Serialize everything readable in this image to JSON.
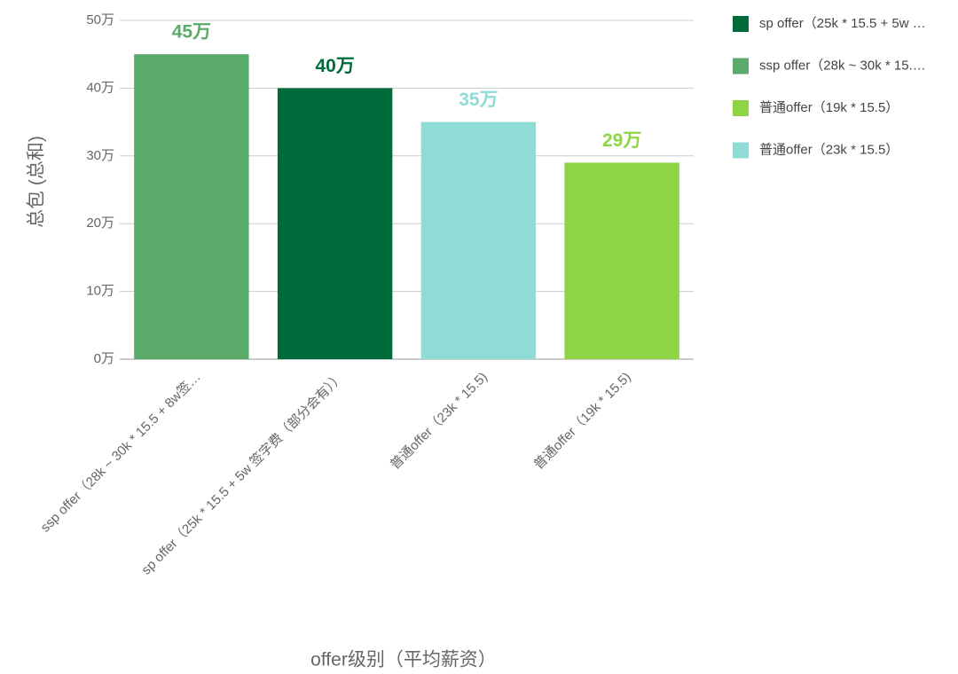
{
  "chart_data": {
    "type": "bar",
    "categories": [
      "ssp offer（28k ~ 30k * 15.5 + 8w签…",
      "sp offer（25k * 15.5 + 5w 签字费（部分会有））",
      "普通offer（23k * 15.5)",
      "普通offer（19k * 15.5)"
    ],
    "series": [
      {
        "name": "sp offer（25k * 15.5 + 5w …",
        "color": "#006b3a",
        "values": [
          null,
          40,
          null,
          null
        ],
        "value_labels": [
          null,
          "40万",
          null,
          null
        ]
      },
      {
        "name": "ssp offer（28k ~ 30k * 15.…",
        "color": "#5aaa6a",
        "values": [
          45,
          null,
          null,
          null
        ],
        "value_labels": [
          "45万",
          null,
          null,
          null
        ]
      },
      {
        "name": "普通offer（19k * 15.5）",
        "color": "#8fd444",
        "values": [
          null,
          null,
          null,
          29
        ],
        "value_labels": [
          null,
          null,
          null,
          "29万"
        ]
      },
      {
        "name": "普通offer（23k * 15.5）",
        "color": "#8edcd5",
        "values": [
          null,
          null,
          35,
          null
        ],
        "value_labels": [
          null,
          null,
          "35万",
          null
        ]
      }
    ],
    "ylim": [
      0,
      50
    ],
    "yticks": [
      {
        "value": 0,
        "label": "0万"
      },
      {
        "value": 10,
        "label": "10万"
      },
      {
        "value": 20,
        "label": "20万"
      },
      {
        "value": 30,
        "label": "30万"
      },
      {
        "value": 40,
        "label": "40万"
      },
      {
        "value": 50,
        "label": "50万"
      }
    ],
    "y_label": "总包 (总和)",
    "x_label": "offer级别（平均薪资）",
    "grid": true,
    "legend_position": "right"
  }
}
